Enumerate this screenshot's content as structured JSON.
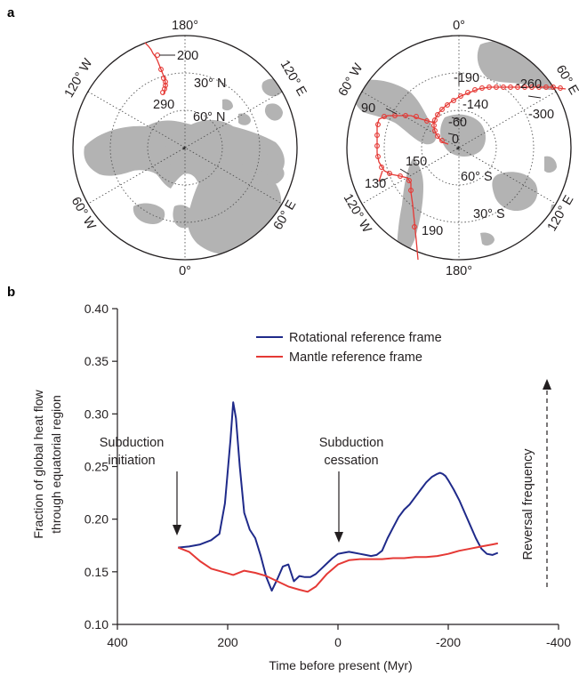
{
  "panel_a": {
    "letter": "a",
    "north_map": {
      "lon_labels": {
        "top": "180°",
        "bottom": "0°",
        "upper_left": "120° W",
        "upper_right": "120° E",
        "lower_left": "60° W",
        "lower_right": "60° E"
      },
      "lat_labels": [
        "30° N",
        "60° N"
      ],
      "track_labels": [
        "200",
        "290"
      ]
    },
    "south_map": {
      "lon_labels": {
        "top": "0°",
        "bottom": "180°",
        "upper_left": "60° W",
        "upper_right": "60° E",
        "lower_left": "120° W",
        "lower_right": "120° E"
      },
      "lat_labels": [
        "60° S",
        "30° S"
      ],
      "track_labels": [
        "-190",
        "-260",
        "-300",
        "-140",
        "-60",
        "0",
        "90",
        "150",
        "130",
        "190"
      ]
    }
  },
  "panel_b": {
    "letter": "b",
    "annotations": {
      "initiation_line1": "Subduction",
      "initiation_line2": "initiation",
      "cessation_line1": "Subduction",
      "cessation_line2": "cessation",
      "reversal": "Reversal frequency"
    }
  },
  "chart_data": {
    "type": "line",
    "title": "",
    "xlabel": "Time before present (Myr)",
    "ylabel_line1": "Fraction of global heat flow",
    "ylabel_line2": "through equatorial region",
    "xlim": [
      400,
      -400
    ],
    "ylim": [
      0.1,
      0.4
    ],
    "x_ticks": [
      400,
      200,
      0,
      -200,
      -400
    ],
    "x_tick_labels": [
      "400",
      "200",
      "0",
      "-200",
      "-400"
    ],
    "y_ticks": [
      0.1,
      0.15,
      0.2,
      0.25,
      0.3,
      0.35,
      0.4
    ],
    "y_tick_labels": [
      "0.10",
      "0.15",
      "0.20",
      "0.25",
      "0.30",
      "0.35",
      "0.40"
    ],
    "legend_position": "top-center",
    "series": [
      {
        "name": "Rotational reference frame",
        "color": "#1f2a8a",
        "x": [
          290,
          270,
          250,
          230,
          215,
          205,
          195,
          190,
          185,
          178,
          170,
          160,
          150,
          140,
          130,
          120,
          110,
          100,
          90,
          80,
          70,
          60,
          50,
          40,
          30,
          20,
          10,
          0,
          -10,
          -20,
          -30,
          -40,
          -50,
          -60,
          -70,
          -80,
          -90,
          -100,
          -110,
          -120,
          -130,
          -140,
          -150,
          -160,
          -170,
          -180,
          -185,
          -190,
          -195,
          -200,
          -210,
          -220,
          -230,
          -240,
          -250,
          -260,
          -270,
          -280,
          -290
        ],
        "y": [
          0.173,
          0.174,
          0.176,
          0.18,
          0.186,
          0.215,
          0.275,
          0.311,
          0.296,
          0.25,
          0.206,
          0.19,
          0.182,
          0.165,
          0.145,
          0.132,
          0.143,
          0.155,
          0.157,
          0.141,
          0.146,
          0.145,
          0.145,
          0.148,
          0.153,
          0.158,
          0.163,
          0.167,
          0.168,
          0.169,
          0.168,
          0.167,
          0.166,
          0.165,
          0.166,
          0.17,
          0.182,
          0.192,
          0.202,
          0.209,
          0.214,
          0.221,
          0.228,
          0.235,
          0.24,
          0.243,
          0.244,
          0.243,
          0.241,
          0.237,
          0.228,
          0.218,
          0.206,
          0.194,
          0.182,
          0.172,
          0.167,
          0.166,
          0.168
        ]
      },
      {
        "name": "Mantle reference frame",
        "color": "#e53935",
        "x": [
          290,
          270,
          250,
          230,
          210,
          190,
          170,
          150,
          130,
          110,
          90,
          70,
          55,
          40,
          20,
          0,
          -20,
          -40,
          -60,
          -80,
          -100,
          -120,
          -140,
          -160,
          -180,
          -200,
          -220,
          -240,
          -260,
          -280,
          -290
        ],
        "y": [
          0.173,
          0.169,
          0.16,
          0.153,
          0.15,
          0.147,
          0.151,
          0.149,
          0.146,
          0.141,
          0.136,
          0.133,
          0.131,
          0.136,
          0.148,
          0.157,
          0.161,
          0.162,
          0.162,
          0.162,
          0.163,
          0.163,
          0.164,
          0.164,
          0.165,
          0.167,
          0.17,
          0.172,
          0.174,
          0.176,
          0.177
        ]
      }
    ]
  }
}
